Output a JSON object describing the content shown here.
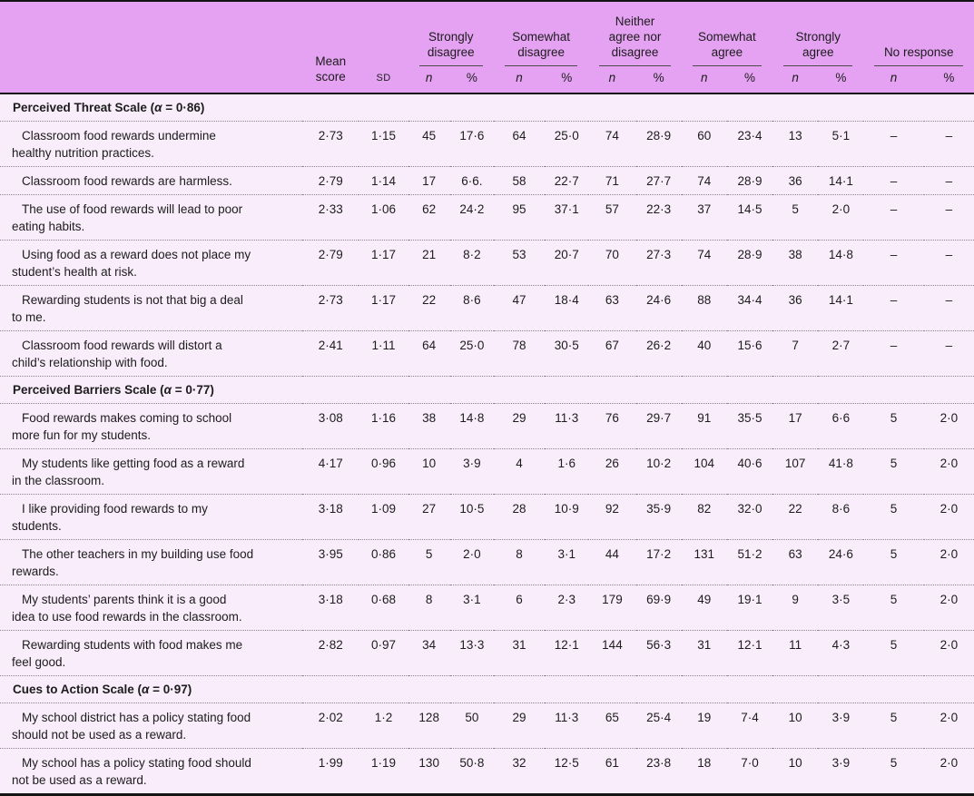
{
  "table": {
    "header": {
      "item_label": "",
      "mean_label": "Mean score",
      "sd_label": "SD",
      "alpha_symbol": "α",
      "n_label": "n",
      "pct_label": "%",
      "groups": [
        "Strongly\ndisagree",
        "Somewhat\ndisagree",
        "Neither\nagree nor\ndisagree",
        "Somewhat\nagree",
        "Strongly\nagree",
        "No response"
      ]
    },
    "colors": {
      "header_bg": "#e5a2f2",
      "body_bg": "#f9edfb",
      "rule": "#141414"
    },
    "sections": [
      {
        "title": "Perceived Threat Scale",
        "alpha": "0·86",
        "rows": [
          {
            "item": "Classroom food rewards undermine\nhealthy nutrition practices.",
            "values": [
              "2·73",
              "1·15",
              "45",
              "17·6",
              "64",
              "25·0",
              "74",
              "28·9",
              "60",
              "23·4",
              "13",
              "5·1",
              "–",
              "–"
            ]
          },
          {
            "item": "Classroom food rewards are harmless.",
            "values": [
              "2·79",
              "1·14",
              "17",
              "6·6.",
              "58",
              "22·7",
              "71",
              "27·7",
              "74",
              "28·9",
              "36",
              "14·1",
              "–",
              "–"
            ]
          },
          {
            "item": "The use of food rewards will lead to poor\neating habits.",
            "values": [
              "2·33",
              "1·06",
              "62",
              "24·2",
              "95",
              "37·1",
              "57",
              "22·3",
              "37",
              "14·5",
              "5",
              "2·0",
              "–",
              "–"
            ]
          },
          {
            "item": "Using food as a reward does not place my\nstudent’s health at risk.",
            "values": [
              "2·79",
              "1·17",
              "21",
              "8·2",
              "53",
              "20·7",
              "70",
              "27·3",
              "74",
              "28·9",
              "38",
              "14·8",
              "–",
              "–"
            ]
          },
          {
            "item": "Rewarding students is not that big a deal\nto me.",
            "values": [
              "2·73",
              "1·17",
              "22",
              "8·6",
              "47",
              "18·4",
              "63",
              "24·6",
              "88",
              "34·4",
              "36",
              "14·1",
              "–",
              "–"
            ]
          },
          {
            "item": "Classroom food rewards will distort a\nchild’s relationship with food.",
            "values": [
              "2·41",
              "1·11",
              "64",
              "25·0",
              "78",
              "30·5",
              "67",
              "26·2",
              "40",
              "15·6",
              "7",
              "2·7",
              "–",
              "–"
            ]
          }
        ]
      },
      {
        "title": "Perceived Barriers Scale",
        "alpha": "0·77",
        "rows": [
          {
            "item": "Food rewards makes coming to school\nmore fun for my students.",
            "values": [
              "3·08",
              "1·16",
              "38",
              "14·8",
              "29",
              "11·3",
              "76",
              "29·7",
              "91",
              "35·5",
              "17",
              "6·6",
              "5",
              "2·0"
            ]
          },
          {
            "item": "My students like getting food as a reward\nin the classroom.",
            "values": [
              "4·17",
              "0·96",
              "10",
              "3·9",
              "4",
              "1·6",
              "26",
              "10·2",
              "104",
              "40·6",
              "107",
              "41·8",
              "5",
              "2·0"
            ]
          },
          {
            "item": "I like providing food rewards to my\nstudents.",
            "values": [
              "3·18",
              "1·09",
              "27",
              "10·5",
              "28",
              "10·9",
              "92",
              "35·9",
              "82",
              "32·0",
              "22",
              "8·6",
              "5",
              "2·0"
            ]
          },
          {
            "item": "The other teachers in my building use food\nrewards.",
            "values": [
              "3·95",
              "0·86",
              "5",
              "2·0",
              "8",
              "3·1",
              "44",
              "17·2",
              "131",
              "51·2",
              "63",
              "24·6",
              "5",
              "2·0"
            ]
          },
          {
            "item": "My students’ parents think it is a good\nidea to use food rewards in the classroom.",
            "values": [
              "3·18",
              "0·68",
              "8",
              "3·1",
              "6",
              "2·3",
              "179",
              "69·9",
              "49",
              "19·1",
              "9",
              "3·5",
              "5",
              "2·0"
            ]
          },
          {
            "item": "Rewarding students with food makes me\nfeel good.",
            "values": [
              "2·82",
              "0·97",
              "34",
              "13·3",
              "31",
              "12·1",
              "144",
              "56·3",
              "31",
              "12·1",
              "11",
              "4·3",
              "5",
              "2·0"
            ]
          }
        ]
      },
      {
        "title": "Cues to Action Scale",
        "alpha": "0·97",
        "rows": [
          {
            "item": "My school district has a policy stating food\nshould not be used as a reward.",
            "values": [
              "2·02",
              "1·2",
              "128",
              "50",
              "29",
              "11·3",
              "65",
              "25·4",
              "19",
              "7·4",
              "10",
              "3·9",
              "5",
              "2·0"
            ]
          },
          {
            "item": "My school has a policy stating food should\nnot be used as a reward.",
            "values": [
              "1·99",
              "1·19",
              "130",
              "50·8",
              "32",
              "12·5",
              "61",
              "23·8",
              "18",
              "7·0",
              "10",
              "3·9",
              "5",
              "2·0"
            ]
          }
        ]
      }
    ]
  }
}
